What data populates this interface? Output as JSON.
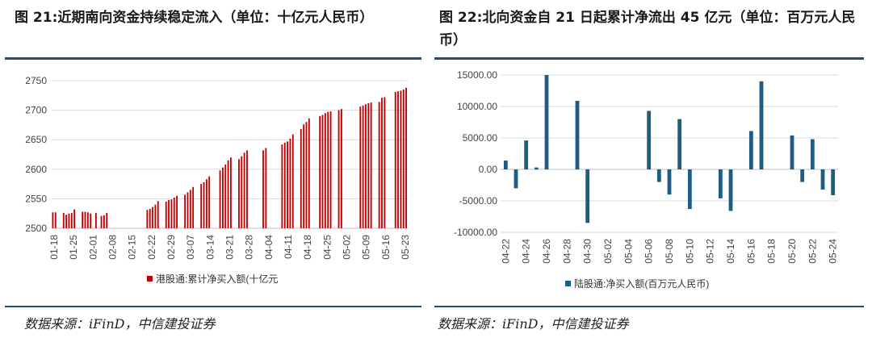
{
  "left": {
    "title": "图 21:近期南向资金持续稳定流入（单位：十亿元人民币）",
    "source": "数据来源：iFinD，中信建投证券"
  },
  "right": {
    "title": "图 22:北向资金自 21 日起累计净流出 45 亿元（单位：百万元人民币）",
    "source": "数据来源：iFinD，中信建投证券"
  },
  "colors": {
    "left_bar": "#c00000",
    "right_bar": "#1f5c82",
    "rule": "#1f4e79",
    "grid": "#d9d9d9"
  },
  "chart_data": [
    {
      "type": "bar",
      "ylim": [
        2500,
        2750
      ],
      "yticks": [
        2500,
        2550,
        2600,
        2650,
        2700,
        2750
      ],
      "xtick_labels": [
        "01-18",
        "01-25",
        "02-01",
        "02-08",
        "02-15",
        "02-22",
        "02-29",
        "03-07",
        "03-14",
        "03-21",
        "03-28",
        "04-04",
        "04-11",
        "04-18",
        "04-25",
        "05-02",
        "05-09",
        "05-16",
        "05-23"
      ],
      "legend": "港股通:累计净买入额(十亿元",
      "grid": "horizontal",
      "series": [
        {
          "name": "港股通:累计净买入额(十亿元",
          "values": [
            2527,
            2527,
            null,
            null,
            2526,
            2523,
            2525,
            2526,
            2532,
            null,
            null,
            2528,
            2528,
            2527,
            2525,
            null,
            2526,
            null,
            2521,
            2522,
            2526,
            null,
            null,
            null,
            null,
            null,
            null,
            null,
            null,
            null,
            null,
            null,
            null,
            null,
            null,
            2531,
            2533,
            2536,
            2540,
            2546,
            null,
            null,
            2545,
            2548,
            2549,
            2552,
            2555,
            null,
            null,
            2557,
            2561,
            2565,
            2570,
            null,
            null,
            2575,
            2578,
            2583,
            2588,
            null,
            null,
            null,
            2598,
            2603,
            2608,
            2615,
            2620,
            null,
            null,
            2617,
            2622,
            2628,
            2632,
            null,
            null,
            null,
            null,
            null,
            2632,
            2636,
            null,
            null,
            null,
            null,
            null,
            2642,
            2645,
            2647,
            2652,
            2659,
            null,
            null,
            2668,
            2676,
            2680,
            2686,
            null,
            null,
            null,
            2690,
            2692,
            2695,
            2697,
            2698,
            null,
            null,
            2700,
            2702,
            null,
            null,
            null,
            null,
            null,
            null,
            2706,
            2708,
            2710,
            2712,
            2713,
            null,
            null,
            2714,
            2721,
            2722,
            null,
            null,
            null,
            2731,
            2732,
            2733,
            2735,
            2738
          ]
        }
      ]
    },
    {
      "type": "bar",
      "ylim": [
        -10000,
        15000
      ],
      "yticks": [
        -10000,
        -5000,
        0,
        5000,
        10000,
        15000
      ],
      "ytick_labels": [
        "-10000.00",
        "-5000.00",
        "0.00",
        "5000.00",
        "10000.00",
        "15000.00"
      ],
      "x": [
        "04-22",
        "04-23",
        "04-24",
        "04-25",
        "04-26",
        "04-27",
        "04-28",
        "04-29",
        "04-30",
        "05-01",
        "05-02",
        "05-03",
        "05-04",
        "05-05",
        "05-06",
        "05-07",
        "05-08",
        "05-09",
        "05-10",
        "05-11",
        "05-12",
        "05-13",
        "05-14",
        "05-15",
        "05-16",
        "05-17",
        "05-18",
        "05-19",
        "05-20",
        "05-21",
        "05-22",
        "05-23",
        "05-24"
      ],
      "xtick_labels": [
        "04-22",
        "04-24",
        "04-26",
        "04-28",
        "04-30",
        "05-02",
        "05-04",
        "05-06",
        "05-08",
        "05-10",
        "05-12",
        "05-14",
        "05-16",
        "05-18",
        "05-20",
        "05-22",
        "05-24"
      ],
      "legend": "陆股通:净买入额(百万元人民币)",
      "grid": "horizontal",
      "series": [
        {
          "name": "陆股通:净买入额(百万元人民币)",
          "values": [
            1400,
            -3000,
            4600,
            300,
            15000,
            null,
            null,
            10900,
            -8500,
            null,
            null,
            null,
            null,
            null,
            9300,
            -2000,
            -4000,
            8000,
            -6300,
            null,
            null,
            -4600,
            -6600,
            null,
            6100,
            14000,
            null,
            null,
            5400,
            -2000,
            4800,
            -3200,
            -4100
          ]
        }
      ]
    }
  ]
}
